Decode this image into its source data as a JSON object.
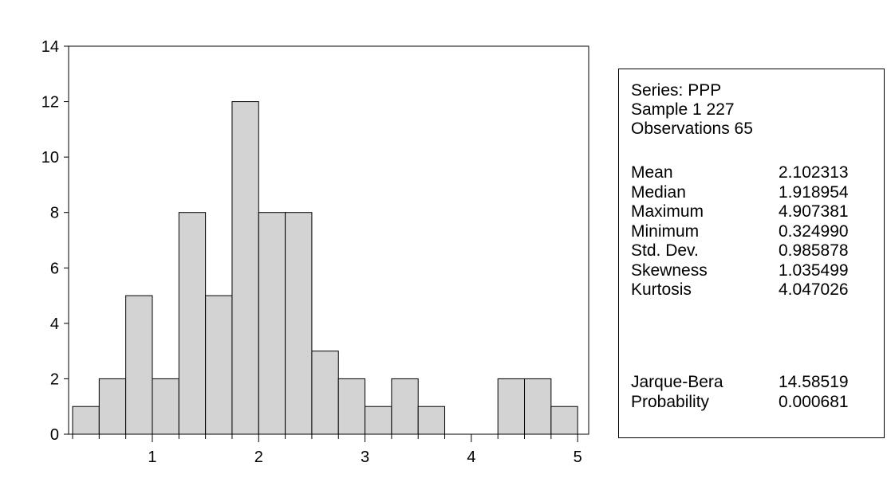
{
  "chart_data": {
    "type": "bar",
    "title": "",
    "xlabel": "",
    "ylabel": "",
    "bin_width": 0.25,
    "bins": [
      {
        "start": 0.25,
        "end": 0.5,
        "count": 1
      },
      {
        "start": 0.5,
        "end": 0.75,
        "count": 2
      },
      {
        "start": 0.75,
        "end": 1.0,
        "count": 5
      },
      {
        "start": 1.0,
        "end": 1.25,
        "count": 2
      },
      {
        "start": 1.25,
        "end": 1.5,
        "count": 8
      },
      {
        "start": 1.5,
        "end": 1.75,
        "count": 5
      },
      {
        "start": 1.75,
        "end": 2.0,
        "count": 12
      },
      {
        "start": 2.0,
        "end": 2.25,
        "count": 8
      },
      {
        "start": 2.25,
        "end": 2.5,
        "count": 8
      },
      {
        "start": 2.5,
        "end": 2.75,
        "count": 3
      },
      {
        "start": 2.75,
        "end": 3.0,
        "count": 2
      },
      {
        "start": 3.0,
        "end": 3.25,
        "count": 1
      },
      {
        "start": 3.25,
        "end": 3.5,
        "count": 2
      },
      {
        "start": 3.5,
        "end": 3.75,
        "count": 1
      },
      {
        "start": 3.75,
        "end": 4.0,
        "count": 0
      },
      {
        "start": 4.0,
        "end": 4.25,
        "count": 0
      },
      {
        "start": 4.25,
        "end": 4.5,
        "count": 2
      },
      {
        "start": 4.5,
        "end": 4.75,
        "count": 2
      },
      {
        "start": 4.75,
        "end": 5.0,
        "count": 1
      }
    ],
    "xlim": [
      0.25,
      5.0
    ],
    "ylim": [
      0,
      14
    ],
    "x_ticks": [
      1,
      2,
      3,
      4,
      5
    ],
    "x_tick_labels": [
      "1",
      "2",
      "3",
      "4",
      "5"
    ],
    "y_ticks": [
      0,
      2,
      4,
      6,
      8,
      10,
      12,
      14
    ],
    "y_tick_labels": [
      "0",
      "2",
      "4",
      "6",
      "8",
      "10",
      "12",
      "14"
    ],
    "grid": false,
    "legend": "none",
    "colors": {
      "bar_fill": "#d3d3d3",
      "bar_stroke": "#000000"
    }
  },
  "stats": {
    "series_line": "Series: PPP",
    "sample_line": "Sample 1 227",
    "observations_line": "Observations 65",
    "rows": [
      {
        "label": "Mean",
        "value": "2.102313"
      },
      {
        "label": "Median",
        "value": "1.918954"
      },
      {
        "label": "Maximum",
        "value": "4.907381"
      },
      {
        "label": "Minimum",
        "value": "0.324990"
      },
      {
        "label": "Std. Dev.",
        "value": "0.985878"
      },
      {
        "label": "Skewness",
        "value": "1.035499"
      },
      {
        "label": "Kurtosis",
        "value": "4.047026"
      }
    ],
    "test_rows": [
      {
        "label": "Jarque-Bera",
        "value": "14.58519"
      },
      {
        "label": "Probability",
        "value": "0.000681"
      }
    ]
  }
}
